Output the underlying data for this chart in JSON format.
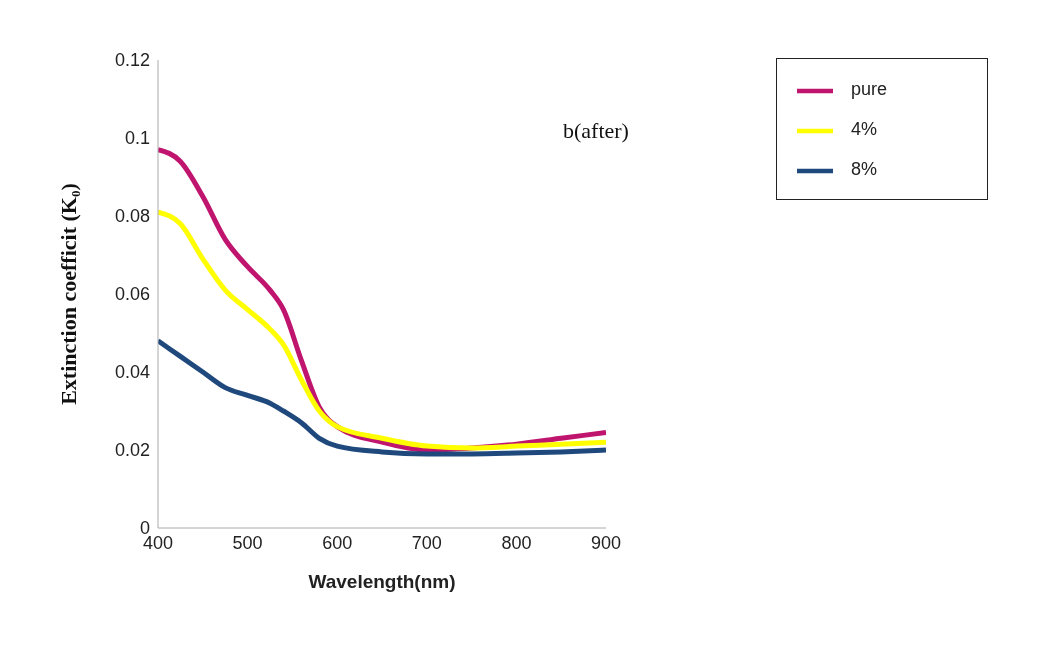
{
  "chart_data": {
    "type": "line",
    "xlabel": "Wavelength(nm)",
    "ylabel": "Extinction coefficit (K₀)",
    "annotations": [
      "b(after)"
    ],
    "x": [
      400,
      425,
      450,
      475,
      500,
      525,
      540,
      560,
      580,
      600,
      650,
      700,
      750,
      800,
      850,
      900
    ],
    "series": [
      {
        "name": "pure",
        "color": "#c0156e",
        "values": [
          0.097,
          0.094,
          0.085,
          0.074,
          0.067,
          0.061,
          0.056,
          0.043,
          0.031,
          0.026,
          0.022,
          0.02,
          0.0205,
          0.0215,
          0.023,
          0.0245
        ]
      },
      {
        "name": "4%",
        "color": "#ffff00",
        "values": [
          0.081,
          0.078,
          0.069,
          0.061,
          0.056,
          0.051,
          0.047,
          0.038,
          0.03,
          0.026,
          0.023,
          0.021,
          0.0205,
          0.021,
          0.0215,
          0.022
        ]
      },
      {
        "name": "8%",
        "color": "#1f497d",
        "values": [
          0.048,
          0.044,
          0.04,
          0.036,
          0.034,
          0.032,
          0.03,
          0.027,
          0.023,
          0.021,
          0.0195,
          0.019,
          0.019,
          0.0192,
          0.0195,
          0.02
        ]
      }
    ],
    "xlim": [
      400,
      900
    ],
    "xticks": [
      400,
      500,
      600,
      700,
      800,
      900
    ],
    "ylim": [
      0,
      0.12
    ],
    "yticks": [
      0,
      0.02,
      0.04,
      0.06,
      0.08,
      0.1,
      0.12
    ],
    "grid": false,
    "legend": "top right",
    "marker": "none",
    "line_style": "solid"
  }
}
